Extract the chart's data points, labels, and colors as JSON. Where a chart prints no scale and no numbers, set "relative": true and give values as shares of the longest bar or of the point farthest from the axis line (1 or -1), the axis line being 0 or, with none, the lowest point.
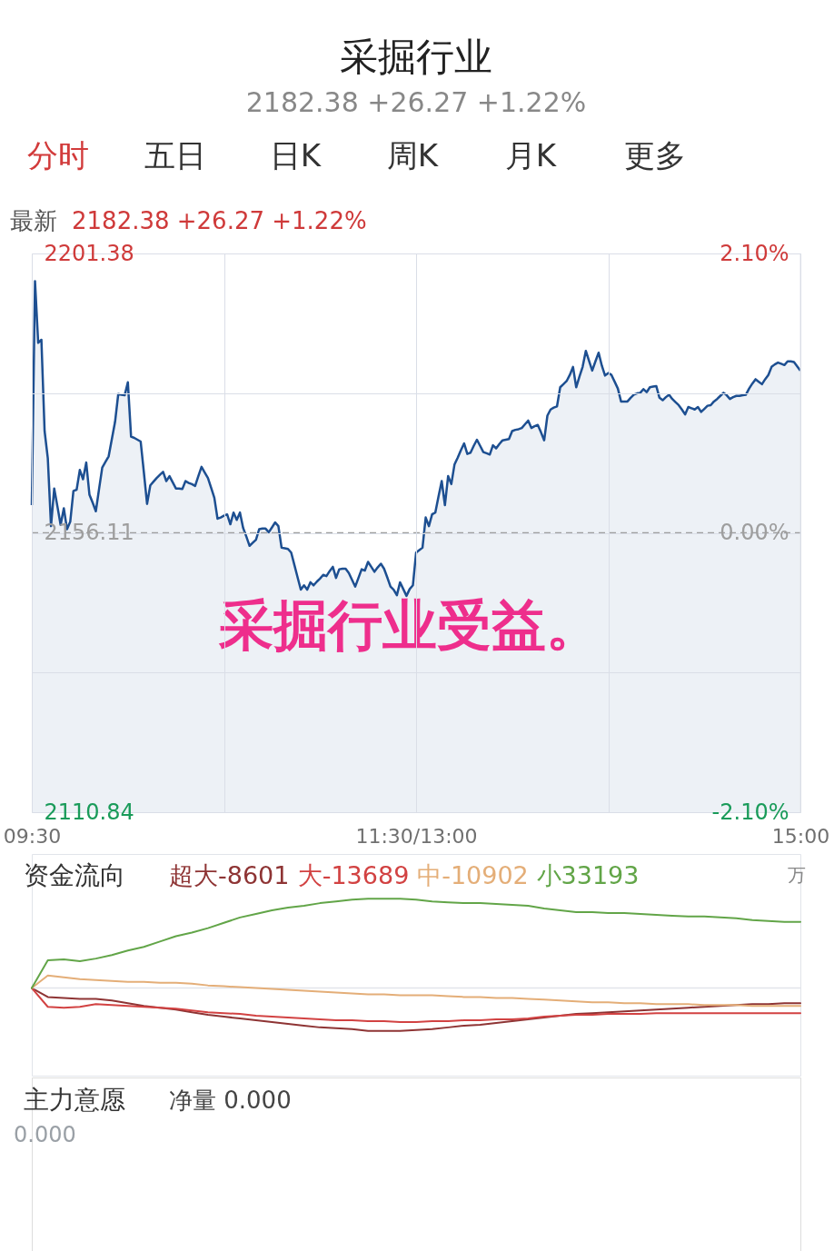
{
  "chart_data": [
    {
      "type": "area",
      "title": "采掘行业",
      "subtitle": "2182.38 +26.27 +1.22%",
      "annotations": [
        "分时",
        "五日",
        "日K",
        "周K",
        "月K",
        "更多",
        "最新",
        "2182.38  +26.27  +1.22%",
        "采掘行业受益。"
      ],
      "categories": [
        "09:30",
        null,
        null,
        null,
        null,
        null,
        null,
        null,
        null,
        null,
        null,
        null,
        null,
        null,
        null,
        null,
        null,
        null,
        null,
        null,
        null,
        null,
        null,
        null,
        null,
        null,
        null,
        null,
        null,
        null,
        null,
        null,
        null,
        null,
        null,
        null,
        null,
        null,
        null,
        null,
        null,
        null,
        null,
        null,
        null,
        null,
        null,
        null,
        null,
        null,
        null,
        null,
        null,
        null,
        null,
        null,
        null,
        null,
        null,
        null,
        null,
        null,
        null,
        null,
        null,
        null,
        null,
        null,
        null,
        null,
        null,
        null,
        null,
        null,
        null,
        null,
        null,
        null,
        null,
        null,
        null,
        null,
        null,
        null,
        null,
        null,
        null,
        null,
        null,
        null,
        null,
        null,
        null,
        null,
        null,
        null,
        null,
        null,
        null,
        null,
        null,
        null,
        null,
        null,
        null,
        null,
        null,
        null,
        null,
        null,
        null,
        null,
        null,
        null,
        null,
        null,
        null,
        null,
        null,
        null,
        "11:30/13:00",
        null,
        null,
        null,
        null,
        null,
        null,
        null,
        null,
        null,
        null,
        null,
        null,
        null,
        null,
        null,
        null,
        null,
        null,
        null,
        null,
        null,
        null,
        null,
        null,
        null,
        null,
        null,
        null,
        null,
        null,
        null,
        null,
        null,
        null,
        null,
        null,
        null,
        null,
        null,
        null,
        null,
        null,
        null,
        null,
        null,
        null,
        null,
        null,
        null,
        null,
        null,
        null,
        null,
        null,
        null,
        null,
        null,
        null,
        null,
        null,
        null,
        null,
        null,
        null,
        null,
        null,
        null,
        null,
        null,
        null,
        null,
        null,
        null,
        null,
        null,
        null,
        null,
        null,
        null,
        null,
        null,
        null,
        null,
        null,
        null,
        null,
        null,
        null,
        null,
        null,
        null,
        null,
        null,
        null,
        null,
        null,
        null,
        null,
        null,
        null,
        null,
        null,
        null,
        null,
        null,
        null,
        null,
        null,
        null,
        null,
        null,
        null,
        null,
        null,
        null,
        null,
        null,
        null,
        null,
        "15:00"
      ],
      "series": [
        {
          "color": "#1d4f91",
          "values": [
            2160.6,
            2196.9,
            2186.9,
            2187.4,
            2172.6,
            2168.2,
            2157.2,
            2163.3,
            2160.4,
            2157.4,
            2160.1,
            2156.7,
            2157.9,
            2162.9,
            2163.1,
            2166.3,
            2164.8,
            2167.5,
            2162.3,
            2161.0,
            2159.6,
            2163.2,
            2166.7,
            2167.6,
            2168.5,
            2171.3,
            2174.1,
            2178.6,
            2178.5,
            2178.4,
            2180.5,
            2171.7,
            2171.5,
            2171.2,
            2170.9,
            2165.9,
            2160.8,
            2163.8,
            2164.4,
            2165.0,
            2165.5,
            2166.0,
            2164.5,
            2165.3,
            2164.3,
            2163.3,
            2163.3,
            2163.2,
            2164.5,
            2164.2,
            2164.0,
            2163.7,
            2165.3,
            2166.8,
            2165.9,
            2165.0,
            2163.4,
            2161.8,
            2158.4,
            2158.6,
            2158.9,
            2159.1,
            2157.5,
            2159.4,
            2158.2,
            2159.4,
            2156.9,
            2155.5,
            2154.0,
            2154.5,
            2155.0,
            2156.7,
            2156.8,
            2156.8,
            2156.2,
            2157.0,
            2157.8,
            2157.2,
            2153.7,
            2153.6,
            2153.5,
            2152.9,
            2150.9,
            2148.9,
            2146.9,
            2147.6,
            2146.9,
            2148.1,
            2147.6,
            2148.2,
            2148.7,
            2149.3,
            2149.1,
            2149.9,
            2150.6,
            2148.8,
            2150.2,
            2150.3,
            2150.3,
            2149.6,
            2148.5,
            2147.4,
            2148.8,
            2150.2,
            2150.0,
            2151.4,
            2150.6,
            2149.8,
            2150.5,
            2151.1,
            2150.3,
            2148.9,
            2147.4,
            2146.9,
            2146.0,
            2148.1,
            2147.0,
            2145.9,
            2147.0,
            2147.6,
            2152.9,
            2153.3,
            2153.7,
            2158.6,
            2157.2,
            2159.1,
            2159.4,
            2162.0,
            2164.5,
            2160.6,
            2165.3,
            2164.0,
            2167.2,
            2168.3,
            2169.5,
            2170.6,
            2168.9,
            2169.1,
            2170.2,
            2171.2,
            2170.2,
            2169.2,
            2169.0,
            2168.8,
            2170.3,
            2169.8,
            2170.5,
            2171.1,
            2171.2,
            2171.3,
            2172.6,
            2172.8,
            2172.9,
            2173.1,
            2173.7,
            2174.3,
            2173.1,
            2173.4,
            2173.6,
            2172.4,
            2171.1,
            2175.1,
            2176.1,
            2176.4,
            2176.6,
            2179.7,
            2180.2,
            2180.7,
            2181.7,
            2183.0,
            2179.7,
            2181.4,
            2183.0,
            2185.6,
            2184.0,
            2182.4,
            2183.9,
            2185.3,
            2183.2,
            2181.6,
            2182.0,
            2181.7,
            2180.6,
            2179.5,
            2177.4,
            2177.4,
            2177.4,
            2178.0,
            2178.5,
            2178.7,
            2178.8,
            2179.4,
            2178.9,
            2179.7,
            2179.8,
            2179.9,
            2178.0,
            2177.6,
            2178.1,
            2178.5,
            2177.8,
            2177.3,
            2176.8,
            2176.1,
            2175.3,
            2176.5,
            2176.3,
            2176.1,
            2176.5,
            2175.7,
            2176.2,
            2176.7,
            2176.8,
            2177.4,
            2177.8,
            2178.3,
            2178.8,
            2178.4,
            2177.8,
            2178.1,
            2178.3,
            2178.3,
            2178.4,
            2178.5,
            2179.5,
            2180.3,
            2181.0,
            2180.6,
            2180.2,
            2181.0,
            2181.7,
            2183.0,
            2183.4,
            2183.7,
            2183.5,
            2183.3,
            2183.9,
            2183.9,
            2183.8,
            2183.1,
            2182.4
          ]
        }
      ],
      "ylim": [
        2110.84,
        2201.38
      ],
      "yticks": [
        2110.84,
        {
          "value": 2133.475,
          "label": null
        },
        2156.11,
        {
          "value": 2178.745,
          "label": null
        },
        2201.38
      ],
      "y2lim": [
        -2.1,
        2.1
      ],
      "y2ticks": [
        {
          "value": -2.1,
          "label": "-2.10%"
        },
        {
          "value": 0,
          "label": "0.00%"
        },
        {
          "value": 2.1,
          "label": "2.10%"
        }
      ],
      "ref_lines": [
        {
          "axis": "y",
          "value": 2156.11,
          "line_style": "dashed",
          "color": "#9e9e9e"
        }
      ],
      "grid": true
    },
    {
      "type": "line",
      "relative": true,
      "annotations": [
        "资金流向",
        "万"
      ],
      "categories": [
        null,
        null,
        null,
        null,
        null,
        null,
        null,
        null,
        null,
        null,
        null,
        null,
        null,
        null,
        null,
        null,
        null,
        null,
        null,
        null,
        null,
        null,
        null,
        null,
        null,
        null,
        null,
        null,
        null,
        null,
        null,
        null,
        null,
        null,
        null,
        null,
        null,
        null,
        null,
        null,
        null,
        null,
        null,
        null,
        null,
        null,
        null,
        null,
        null
      ],
      "series": [
        {
          "name": "超大-8601",
          "color": "#8e3434",
          "values": [
            0,
            -0.1,
            -0.11,
            -0.12,
            -0.12,
            -0.14,
            -0.17,
            -0.2,
            -0.22,
            -0.24,
            -0.27,
            -0.3,
            -0.32,
            -0.34,
            -0.36,
            -0.38,
            -0.4,
            -0.42,
            -0.44,
            -0.45,
            -0.46,
            -0.48,
            -0.48,
            -0.48,
            -0.47,
            -0.46,
            -0.44,
            -0.42,
            -0.41,
            -0.39,
            -0.37,
            -0.35,
            -0.33,
            -0.31,
            -0.29,
            -0.28,
            -0.27,
            -0.26,
            -0.25,
            -0.24,
            -0.23,
            -0.22,
            -0.21,
            -0.2,
            -0.19,
            -0.18,
            -0.18,
            -0.17,
            -0.17
          ]
        },
        {
          "name": "大-13689",
          "color": "#d24242",
          "values": [
            0,
            -0.21,
            -0.22,
            -0.21,
            -0.18,
            -0.19,
            -0.2,
            -0.21,
            -0.22,
            -0.23,
            -0.25,
            -0.27,
            -0.28,
            -0.29,
            -0.31,
            -0.32,
            -0.33,
            -0.34,
            -0.35,
            -0.36,
            -0.36,
            -0.37,
            -0.37,
            -0.38,
            -0.38,
            -0.37,
            -0.37,
            -0.36,
            -0.36,
            -0.35,
            -0.35,
            -0.34,
            -0.32,
            -0.31,
            -0.3,
            -0.3,
            -0.29,
            -0.29,
            -0.29,
            -0.28,
            -0.28,
            -0.28,
            -0.28,
            -0.28,
            -0.28,
            -0.28,
            -0.28,
            -0.28,
            -0.28
          ]
        },
        {
          "name": "中-10902",
          "color": "#e4ae78",
          "values": [
            0,
            0.14,
            0.12,
            0.1,
            0.09,
            0.08,
            0.07,
            0.07,
            0.06,
            0.06,
            0.05,
            0.03,
            0.02,
            0.01,
            0.0,
            -0.01,
            -0.02,
            -0.03,
            -0.04,
            -0.05,
            -0.06,
            -0.07,
            -0.07,
            -0.08,
            -0.08,
            -0.08,
            -0.09,
            -0.1,
            -0.1,
            -0.11,
            -0.11,
            -0.12,
            -0.13,
            -0.14,
            -0.15,
            -0.16,
            -0.16,
            -0.17,
            -0.17,
            -0.18,
            -0.18,
            -0.18,
            -0.19,
            -0.19,
            -0.19,
            -0.2,
            -0.2,
            -0.2,
            -0.2
          ]
        },
        {
          "name": "小33193",
          "color": "#62a548",
          "values": [
            0,
            0.31,
            0.32,
            0.3,
            0.33,
            0.37,
            0.42,
            0.46,
            0.52,
            0.58,
            0.62,
            0.67,
            0.73,
            0.79,
            0.83,
            0.87,
            0.9,
            0.92,
            0.95,
            0.97,
            0.99,
            1.0,
            1.0,
            1.0,
            0.99,
            0.97,
            0.96,
            0.95,
            0.95,
            0.94,
            0.93,
            0.92,
            0.89,
            0.87,
            0.85,
            0.85,
            0.84,
            0.84,
            0.83,
            0.82,
            0.81,
            0.8,
            0.8,
            0.79,
            0.78,
            0.76,
            0.75,
            0.74,
            0.74
          ]
        }
      ]
    },
    {
      "type": "other",
      "annotations": [
        "主力意愿",
        "净量 0.000",
        "0.000"
      ]
    }
  ]
}
